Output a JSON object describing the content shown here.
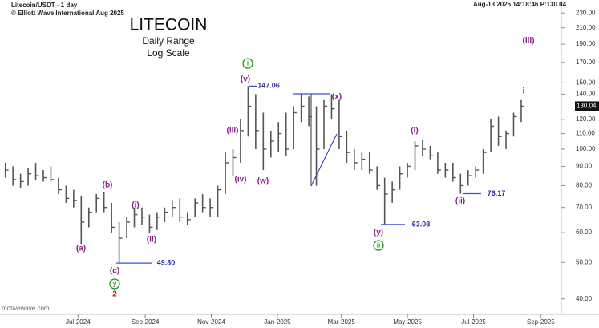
{
  "chart_data": {
    "type": "ohlc",
    "header": "Litecoin/USDT - 1 day",
    "copyright": "© Elliott Wave International Aug 2025",
    "status": "Aug-13 2025  14:18:46  P:130.04",
    "watermark": "motivewave.com",
    "title": "LITECOIN",
    "subtitle": [
      "Daily Range",
      "Log Scale"
    ],
    "log_scale": true,
    "color": "#555555",
    "x": [
      "2024-04-22",
      "2024-04-29",
      "2024-05-06",
      "2024-05-13",
      "2024-05-20",
      "2024-05-27",
      "2024-06-03",
      "2024-06-10",
      "2024-06-17",
      "2024-06-24",
      "2024-07-01",
      "2024-07-08",
      "2024-07-15",
      "2024-07-22",
      "2024-07-29",
      "2024-08-05",
      "2024-08-12",
      "2024-08-19",
      "2024-08-26",
      "2024-09-02",
      "2024-09-09",
      "2024-09-16",
      "2024-09-23",
      "2024-09-30",
      "2024-10-07",
      "2024-10-14",
      "2024-10-21",
      "2024-10-28",
      "2024-11-04",
      "2024-11-11",
      "2024-11-18",
      "2024-11-25",
      "2024-12-02",
      "2024-12-09",
      "2024-12-16",
      "2024-12-23",
      "2024-12-30",
      "2025-01-06",
      "2025-01-13",
      "2025-01-20",
      "2025-01-27",
      "2025-02-03",
      "2025-02-10",
      "2025-02-17",
      "2025-02-24",
      "2025-03-03",
      "2025-03-10",
      "2025-03-17",
      "2025-03-24",
      "2025-03-31",
      "2025-04-07",
      "2025-04-14",
      "2025-04-21",
      "2025-04-28",
      "2025-05-05",
      "2025-05-12",
      "2025-05-19",
      "2025-05-26",
      "2025-06-02",
      "2025-06-09",
      "2025-06-16",
      "2025-06-23",
      "2025-06-30",
      "2025-07-07",
      "2025-07-14",
      "2025-07-21",
      "2025-07-28",
      "2025-08-04",
      "2025-08-11"
    ],
    "high": [
      92,
      90,
      86,
      89,
      92,
      88,
      90,
      84,
      80,
      78,
      75,
      70,
      76,
      77,
      72,
      64,
      66,
      70,
      70,
      67,
      68,
      70,
      73,
      74,
      68,
      74,
      76,
      74,
      80,
      98,
      100,
      120,
      147.06,
      140,
      125,
      112,
      118,
      125,
      130,
      140,
      138,
      130,
      135,
      140,
      135,
      112,
      100,
      98,
      98,
      90,
      84,
      82,
      90,
      92,
      105,
      106,
      102,
      98,
      92,
      92,
      86,
      88,
      90,
      100,
      120,
      122,
      112,
      125,
      135
    ],
    "low": [
      84,
      80,
      79,
      80,
      83,
      82,
      82,
      76,
      72,
      70,
      56,
      62,
      68,
      68,
      60,
      49.8,
      58,
      62,
      63,
      60,
      61,
      64,
      66,
      64,
      63,
      66,
      68,
      66,
      66,
      76,
      85,
      92,
      108,
      100,
      88,
      95,
      98,
      96,
      100,
      118,
      115,
      80,
      100,
      120,
      100,
      92,
      88,
      88,
      86,
      78,
      63.08,
      72,
      78,
      84,
      88,
      96,
      94,
      86,
      84,
      82,
      76.17,
      80,
      84,
      86,
      98,
      102,
      100,
      108,
      118
    ],
    "close": [
      88,
      83,
      82,
      86,
      85,
      84,
      83,
      78,
      74,
      73,
      64,
      68,
      74,
      70,
      62,
      58,
      64,
      67,
      66,
      62,
      66,
      68,
      70,
      66,
      65,
      72,
      70,
      70,
      78,
      92,
      95,
      112,
      130,
      112,
      100,
      105,
      110,
      100,
      125,
      130,
      122,
      100,
      130,
      128,
      108,
      98,
      92,
      94,
      88,
      80,
      76,
      78,
      86,
      90,
      102,
      100,
      96,
      88,
      88,
      84,
      80,
      85,
      88,
      98,
      115,
      108,
      110,
      122,
      130.04
    ],
    "xlim": [
      "2024-04-20",
      "2025-09-20"
    ],
    "xticks": [
      {
        "value": "2024-07-01",
        "label": "Jul-2024"
      },
      {
        "value": "2024-09-01",
        "label": "Sep-2024"
      },
      {
        "value": "2024-11-01",
        "label": "Nov-2024"
      },
      {
        "value": "2025-01-01",
        "label": "Jan-2025"
      },
      {
        "value": "2025-03-01",
        "label": "Mar-2025"
      },
      {
        "value": "2025-05-01",
        "label": "May-2025"
      },
      {
        "value": "2025-07-01",
        "label": "Jul-2025"
      },
      {
        "value": "2025-09-01",
        "label": "Sep-2025"
      }
    ],
    "ylim": [
      36.4,
      249
    ],
    "yticks": [
      {
        "value": 40,
        "label": "40.00"
      },
      {
        "value": 50,
        "label": "50.00"
      },
      {
        "value": 60,
        "label": "60.00"
      },
      {
        "value": 70,
        "label": "70.00"
      },
      {
        "value": 80,
        "label": "80.00"
      },
      {
        "value": 90,
        "label": "90.00"
      },
      {
        "value": 100,
        "label": "100.00"
      },
      {
        "value": 110,
        "label": "110.00"
      },
      {
        "value": 120,
        "label": "120.00"
      },
      {
        "value": 140,
        "label": "140.00"
      },
      {
        "value": 150,
        "label": "150.00"
      },
      {
        "value": 170,
        "label": "170.00"
      },
      {
        "value": 190,
        "label": "190.00"
      },
      {
        "value": 210,
        "label": "210.00"
      },
      {
        "value": 230,
        "label": "230.00"
      }
    ],
    "last_price": {
      "value": 130.04,
      "label": "130.04"
    },
    "price_marks": [
      {
        "value": 147.06,
        "label": "147.06"
      },
      {
        "value": 49.8,
        "label": "49.80"
      },
      {
        "value": 63.08,
        "label": "63.08"
      },
      {
        "value": 76.17,
        "label": "76.17"
      }
    ],
    "wave_labels": [
      {
        "text": "(a)",
        "color": "#8b1a8b"
      },
      {
        "text": "(b)",
        "color": "#8b1a8b"
      },
      {
        "text": "(c)",
        "color": "#8b1a8b"
      },
      {
        "text": "(i)",
        "color": "#8b1a8b"
      },
      {
        "text": "(ii)",
        "color": "#8b1a8b"
      },
      {
        "text": "(iii)",
        "color": "#8b1a8b"
      },
      {
        "text": "(iv)",
        "color": "#8b1a8b"
      },
      {
        "text": "(v)",
        "color": "#8b1a8b"
      },
      {
        "text": "(w)",
        "color": "#8b1a8b"
      },
      {
        "text": "(x)",
        "color": "#8b1a8b"
      },
      {
        "text": "(y)",
        "color": "#8b1a8b"
      },
      {
        "text": "(i)",
        "color": "#8b1a8b"
      },
      {
        "text": "(ii)",
        "color": "#8b1a8b"
      },
      {
        "text": "(iii)",
        "color": "#8b1a8b"
      },
      {
        "text": "i",
        "color": "#2b2bb0"
      },
      {
        "text": "2",
        "color": "#d01010"
      }
    ],
    "circled_labels": [
      {
        "text": "y",
        "color": "#1a9a1a"
      },
      {
        "text": "i",
        "color": "#1a9a1a"
      },
      {
        "text": "ii",
        "color": "#1a9a1a"
      }
    ]
  }
}
